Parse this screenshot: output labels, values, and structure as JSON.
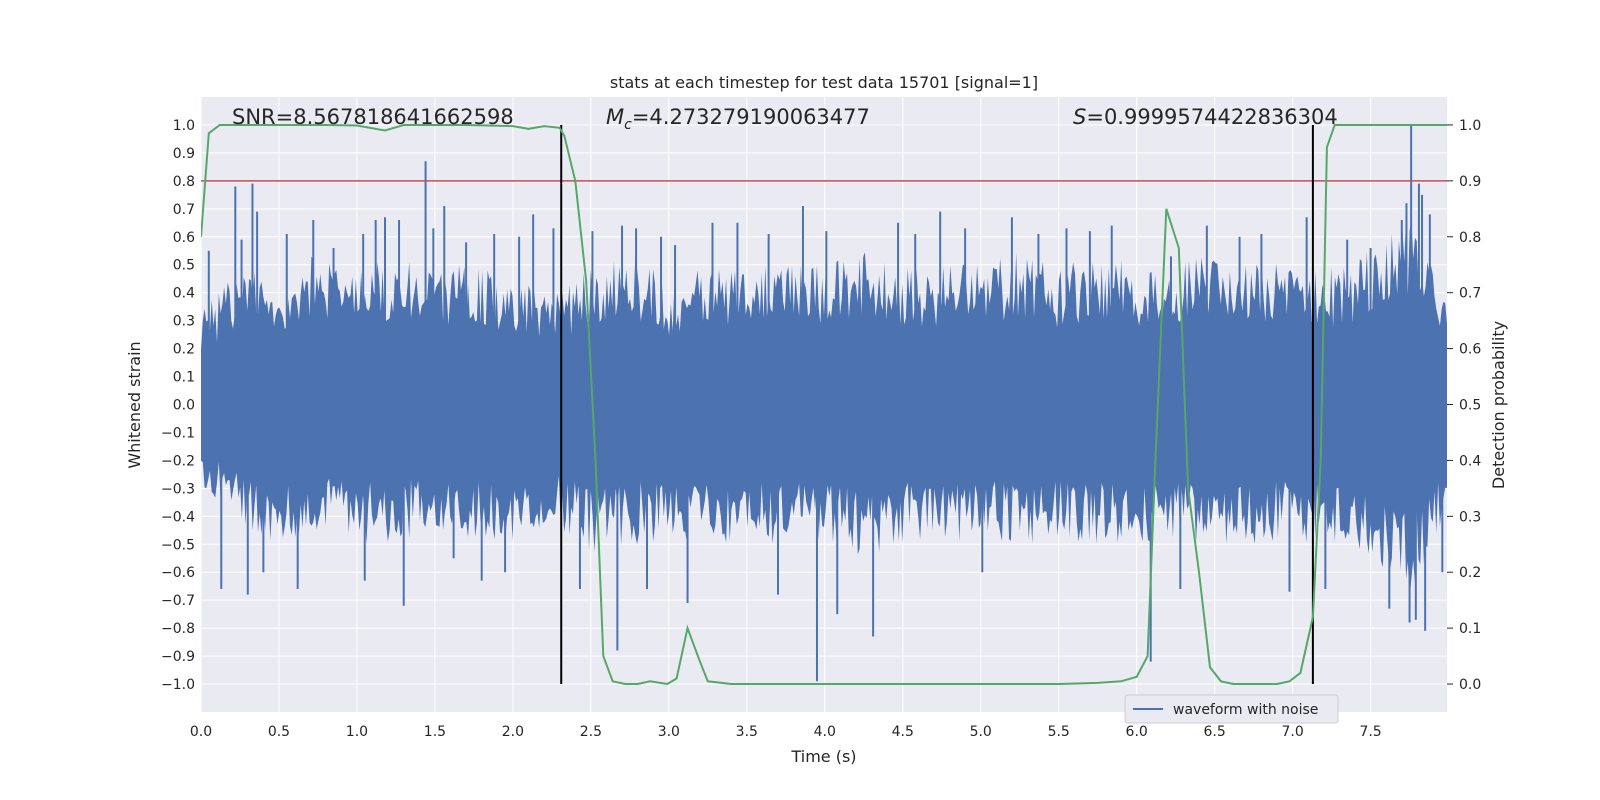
{
  "chart_data": {
    "type": "line",
    "title": "stats at each timestep for test data 15701 [signal=1]",
    "xlabel": "Time (s)",
    "ylabel": "Whitened strain",
    "y2label": "Detection probability",
    "xlim": [
      0.0,
      7.99
    ],
    "ylim": [
      -1.1,
      1.1
    ],
    "y2lim": [
      -0.05,
      1.05
    ],
    "xticks": [
      "0.0",
      "0.5",
      "1.0",
      "1.5",
      "2.0",
      "2.5",
      "3.0",
      "3.5",
      "4.0",
      "4.5",
      "5.0",
      "5.5",
      "6.0",
      "6.5",
      "7.0",
      "7.5"
    ],
    "yticks": [
      "1.0",
      "0.9",
      "0.8",
      "0.7",
      "0.6",
      "0.5",
      "0.4",
      "0.3",
      "0.2",
      "0.1",
      "0.0",
      "−0.1",
      "−0.2",
      "−0.3",
      "−0.4",
      "−0.5",
      "−0.6",
      "−0.7",
      "−0.8",
      "−0.9",
      "−1.0"
    ],
    "y2ticks": [
      "1.0",
      "0.9",
      "0.8",
      "0.7",
      "0.6",
      "0.5",
      "0.4",
      "0.3",
      "0.2",
      "0.1",
      "0.0"
    ],
    "legend": {
      "label": "waveform with noise",
      "placement": "lower-right"
    },
    "annotations": {
      "snr": "SNR=8.567818641662598",
      "mc_symbol": "M",
      "mc_sub": "c",
      "mc_value": "=4.273279190063477",
      "s_symbol": "S",
      "s_value": "=0.9999574422836304"
    },
    "threshold_y": 0.8,
    "vlines_x": [
      2.31,
      7.13
    ],
    "waveform": {
      "name": "waveform with noise",
      "envelope_upper": [
        [
          0.0,
          0.33
        ],
        [
          0.25,
          0.5
        ],
        [
          0.5,
          0.45
        ],
        [
          0.75,
          0.55
        ],
        [
          1.0,
          0.5
        ],
        [
          1.25,
          0.55
        ],
        [
          1.5,
          0.5
        ],
        [
          1.75,
          0.5
        ],
        [
          2.0,
          0.45
        ],
        [
          2.3,
          0.4
        ],
        [
          2.5,
          0.5
        ],
        [
          2.75,
          0.55
        ],
        [
          3.0,
          0.45
        ],
        [
          3.25,
          0.5
        ],
        [
          3.5,
          0.5
        ],
        [
          3.75,
          0.5
        ],
        [
          4.0,
          0.5
        ],
        [
          4.25,
          0.55
        ],
        [
          4.5,
          0.5
        ],
        [
          4.75,
          0.5
        ],
        [
          5.0,
          0.5
        ],
        [
          5.25,
          0.55
        ],
        [
          5.5,
          0.5
        ],
        [
          5.75,
          0.55
        ],
        [
          6.0,
          0.5
        ],
        [
          6.25,
          0.5
        ],
        [
          6.5,
          0.55
        ],
        [
          6.75,
          0.5
        ],
        [
          7.0,
          0.55
        ],
        [
          7.25,
          0.5
        ],
        [
          7.5,
          0.55
        ],
        [
          7.75,
          0.7
        ],
        [
          7.99,
          0.45
        ]
      ],
      "envelope_lower": [
        [
          0.0,
          -0.3
        ],
        [
          0.25,
          -0.45
        ],
        [
          0.5,
          -0.5
        ],
        [
          0.75,
          -0.45
        ],
        [
          1.0,
          -0.5
        ],
        [
          1.25,
          -0.5
        ],
        [
          1.5,
          -0.45
        ],
        [
          1.75,
          -0.5
        ],
        [
          2.0,
          -0.5
        ],
        [
          2.3,
          -0.45
        ],
        [
          2.5,
          -0.55
        ],
        [
          2.75,
          -0.5
        ],
        [
          3.0,
          -0.5
        ],
        [
          3.25,
          -0.5
        ],
        [
          3.5,
          -0.5
        ],
        [
          3.75,
          -0.5
        ],
        [
          4.0,
          -0.5
        ],
        [
          4.25,
          -0.55
        ],
        [
          4.5,
          -0.5
        ],
        [
          4.75,
          -0.5
        ],
        [
          5.0,
          -0.5
        ],
        [
          5.25,
          -0.5
        ],
        [
          5.5,
          -0.5
        ],
        [
          5.75,
          -0.5
        ],
        [
          6.0,
          -0.5
        ],
        [
          6.25,
          -0.5
        ],
        [
          6.5,
          -0.5
        ],
        [
          6.75,
          -0.5
        ],
        [
          7.0,
          -0.5
        ],
        [
          7.25,
          -0.5
        ],
        [
          7.5,
          -0.55
        ],
        [
          7.75,
          -0.7
        ],
        [
          7.99,
          -0.4
        ]
      ],
      "spikes": [
        [
          0.05,
          0.55
        ],
        [
          0.13,
          -0.66
        ],
        [
          0.22,
          0.78
        ],
        [
          0.26,
          0.59
        ],
        [
          0.3,
          -0.68
        ],
        [
          0.33,
          0.79
        ],
        [
          0.36,
          0.69
        ],
        [
          0.4,
          -0.6
        ],
        [
          0.55,
          0.61
        ],
        [
          0.62,
          -0.66
        ],
        [
          0.72,
          0.66
        ],
        [
          0.85,
          0.56
        ],
        [
          1.04,
          0.61
        ],
        [
          1.05,
          -0.63
        ],
        [
          1.12,
          0.66
        ],
        [
          1.18,
          0.67
        ],
        [
          1.27,
          0.66
        ],
        [
          1.3,
          -0.72
        ],
        [
          1.44,
          0.87
        ],
        [
          1.49,
          0.63
        ],
        [
          1.56,
          0.71
        ],
        [
          1.62,
          -0.55
        ],
        [
          1.7,
          0.58
        ],
        [
          1.8,
          -0.63
        ],
        [
          1.88,
          0.61
        ],
        [
          1.95,
          -0.6
        ],
        [
          2.04,
          0.6
        ],
        [
          2.13,
          0.68
        ],
        [
          2.26,
          0.63
        ],
        [
          2.43,
          -0.66
        ],
        [
          2.51,
          0.62
        ],
        [
          2.67,
          -0.88
        ],
        [
          2.7,
          0.64
        ],
        [
          2.79,
          0.63
        ],
        [
          2.86,
          -0.66
        ],
        [
          2.95,
          0.6
        ],
        [
          3.04,
          0.57
        ],
        [
          3.12,
          -0.71
        ],
        [
          3.28,
          0.65
        ],
        [
          3.44,
          0.65
        ],
        [
          3.64,
          0.61
        ],
        [
          3.7,
          -0.68
        ],
        [
          3.86,
          0.71
        ],
        [
          3.95,
          -0.99
        ],
        [
          4.01,
          0.62
        ],
        [
          4.08,
          -0.75
        ],
        [
          4.31,
          -0.83
        ],
        [
          4.47,
          0.65
        ],
        [
          4.58,
          0.61
        ],
        [
          4.74,
          0.69
        ],
        [
          4.9,
          0.63
        ],
        [
          5.01,
          -0.6
        ],
        [
          5.2,
          0.67
        ],
        [
          5.37,
          0.61
        ],
        [
          5.55,
          0.63
        ],
        [
          5.7,
          0.62
        ],
        [
          5.84,
          0.64
        ],
        [
          6.09,
          -0.92
        ],
        [
          6.22,
          0.53
        ],
        [
          6.28,
          -0.66
        ],
        [
          6.45,
          0.64
        ],
        [
          6.66,
          0.6
        ],
        [
          6.8,
          0.61
        ],
        [
          6.98,
          -0.67
        ],
        [
          7.09,
          0.67
        ],
        [
          7.21,
          -0.66
        ],
        [
          7.35,
          0.59
        ],
        [
          7.5,
          0.56
        ],
        [
          7.62,
          -0.73
        ],
        [
          7.7,
          0.66
        ],
        [
          7.73,
          0.72
        ],
        [
          7.75,
          -0.78
        ],
        [
          7.76,
          1.0
        ],
        [
          7.79,
          -0.77
        ],
        [
          7.81,
          0.79
        ],
        [
          7.83,
          0.75
        ],
        [
          7.85,
          -0.81
        ],
        [
          7.88,
          0.68
        ],
        [
          7.96,
          -0.6
        ]
      ]
    },
    "probability": {
      "name": "detection probability",
      "points": [
        [
          0.0,
          0.8
        ],
        [
          0.05,
          0.985
        ],
        [
          0.12,
          1.0
        ],
        [
          0.5,
          1.0
        ],
        [
          0.8,
          1.0
        ],
        [
          1.0,
          0.999
        ],
        [
          1.18,
          0.99
        ],
        [
          1.3,
          1.0
        ],
        [
          1.7,
          1.0
        ],
        [
          2.0,
          0.998
        ],
        [
          2.1,
          0.993
        ],
        [
          2.2,
          0.998
        ],
        [
          2.3,
          0.995
        ],
        [
          2.33,
          0.98
        ],
        [
          2.4,
          0.9
        ],
        [
          2.47,
          0.72
        ],
        [
          2.53,
          0.4
        ],
        [
          2.58,
          0.05
        ],
        [
          2.64,
          0.005
        ],
        [
          2.72,
          0.0
        ],
        [
          2.8,
          0.0
        ],
        [
          2.88,
          0.005
        ],
        [
          2.99,
          0.0
        ],
        [
          3.05,
          0.01
        ],
        [
          3.12,
          0.1
        ],
        [
          3.2,
          0.04
        ],
        [
          3.25,
          0.005
        ],
        [
          3.4,
          0.0
        ],
        [
          4.0,
          0.0
        ],
        [
          4.5,
          0.0
        ],
        [
          5.0,
          0.0
        ],
        [
          5.5,
          0.0
        ],
        [
          5.75,
          0.002
        ],
        [
          5.9,
          0.005
        ],
        [
          6.0,
          0.013
        ],
        [
          6.07,
          0.05
        ],
        [
          6.12,
          0.4
        ],
        [
          6.19,
          0.85
        ],
        [
          6.27,
          0.78
        ],
        [
          6.33,
          0.35
        ],
        [
          6.4,
          0.2
        ],
        [
          6.47,
          0.03
        ],
        [
          6.54,
          0.005
        ],
        [
          6.62,
          0.0
        ],
        [
          6.9,
          0.0
        ],
        [
          6.98,
          0.005
        ],
        [
          7.05,
          0.02
        ],
        [
          7.13,
          0.12
        ],
        [
          7.18,
          0.4
        ],
        [
          7.22,
          0.96
        ],
        [
          7.27,
          1.0
        ],
        [
          7.5,
          1.0
        ],
        [
          7.99,
          1.0
        ]
      ]
    },
    "colors": {
      "background": "#ffffff",
      "plot_area": "#eaeaf2",
      "grid": "#ffffff",
      "waveform": "#4c72b0",
      "probability": "#55a868",
      "threshold": "#c44e52",
      "vline": "#000000",
      "text": "#262626"
    }
  }
}
